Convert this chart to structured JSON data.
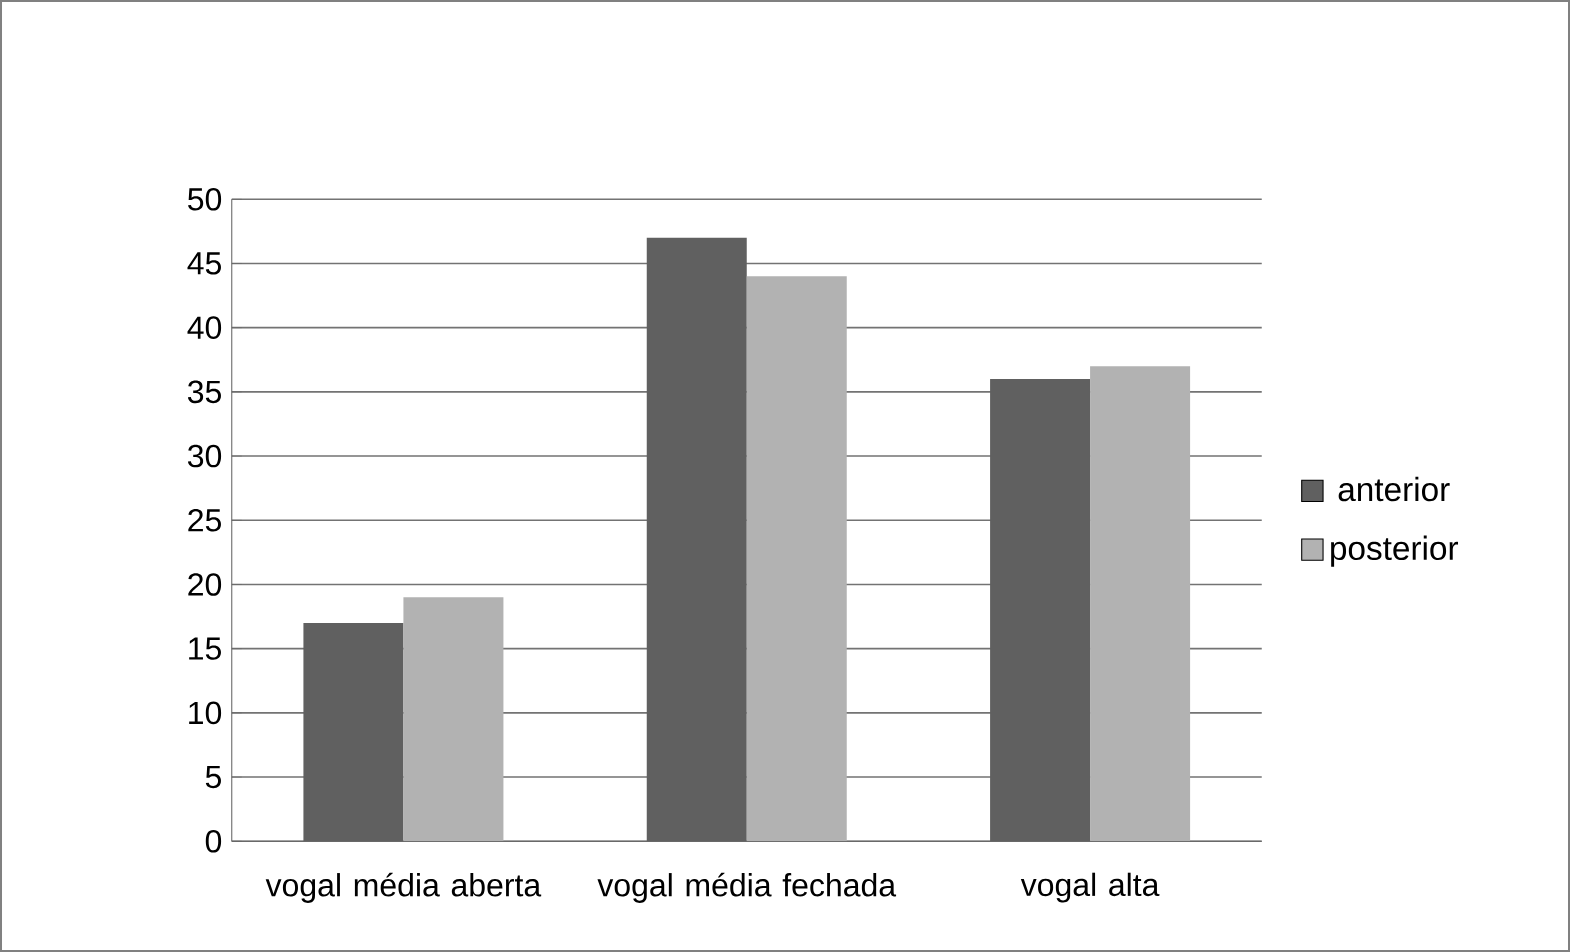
{
  "chart_data": {
    "type": "bar",
    "categories": [
      "vogal média aberta",
      "vogal média fechada",
      "vogal alta"
    ],
    "series": [
      {
        "name": "anterior",
        "color": "#606060",
        "values": [
          17,
          47,
          36
        ]
      },
      {
        "name": "posterior",
        "color": "#b2b2b2",
        "values": [
          19,
          44,
          37
        ]
      }
    ],
    "ylim": [
      0,
      50
    ],
    "yticks": [
      0,
      5,
      10,
      15,
      20,
      25,
      30,
      35,
      40,
      45,
      50
    ],
    "grid": "y",
    "legend": "right"
  }
}
